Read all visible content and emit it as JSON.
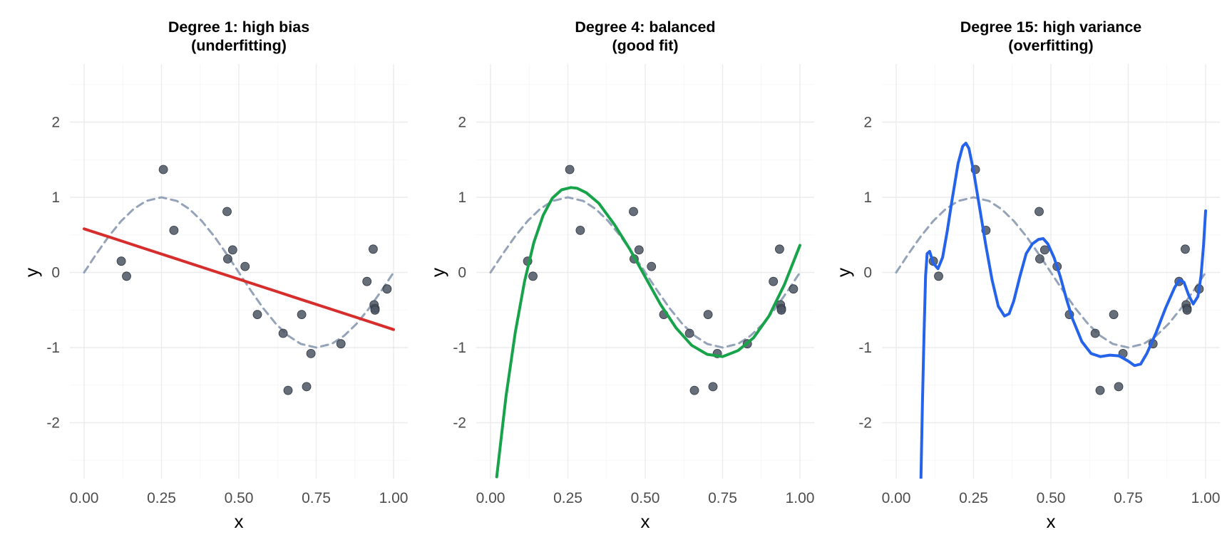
{
  "chart_data": [
    {
      "type": "scatter",
      "title": [
        "Degree 1: high bias",
        "(underfitting)"
      ],
      "xlabel": "x",
      "ylabel": "y",
      "xlim": [
        0,
        1
      ],
      "ylim": [
        -2.6,
        2.6
      ],
      "x_ticks": [
        "0.00",
        "0.25",
        "0.50",
        "0.75",
        "1.00"
      ],
      "y_ticks": [
        "2",
        "1",
        "0",
        "-1",
        "-2"
      ],
      "grid": true,
      "fit_color": "#d62d2d",
      "fit_curve": {
        "x": [
          0.0,
          0.1,
          0.2,
          0.3,
          0.4,
          0.5,
          0.6,
          0.7,
          0.8,
          0.9,
          1.0
        ],
        "y": [
          0.58,
          0.446,
          0.312,
          0.178,
          0.044,
          -0.09,
          -0.224,
          -0.358,
          -0.492,
          -0.626,
          -0.76
        ]
      }
    },
    {
      "type": "scatter",
      "title": [
        "Degree 4: balanced",
        "(good fit)"
      ],
      "xlabel": "x",
      "ylabel": "y",
      "xlim": [
        0,
        1
      ],
      "ylim": [
        -2.6,
        2.6
      ],
      "x_ticks": [
        "0.00",
        "0.25",
        "0.50",
        "0.75",
        "1.00"
      ],
      "y_ticks": [
        "2",
        "1",
        "0",
        "-1",
        "-2"
      ],
      "grid": true,
      "fit_color": "#16a34a",
      "fit_curve": {
        "x": [
          0.02,
          0.05,
          0.08,
          0.11,
          0.14,
          0.17,
          0.2,
          0.23,
          0.26,
          0.28,
          0.31,
          0.35,
          0.4,
          0.45,
          0.5,
          0.55,
          0.6,
          0.65,
          0.7,
          0.75,
          0.8,
          0.85,
          0.9,
          0.95,
          1.0
        ],
        "y": [
          -2.72,
          -1.65,
          -0.8,
          -0.12,
          0.4,
          0.76,
          0.99,
          1.1,
          1.13,
          1.12,
          1.06,
          0.92,
          0.64,
          0.31,
          -0.06,
          -0.43,
          -0.74,
          -0.97,
          -1.09,
          -1.12,
          -1.04,
          -0.87,
          -0.58,
          -0.16,
          0.36
        ]
      }
    },
    {
      "type": "scatter",
      "title": [
        "Degree 15: high variance",
        "(overfitting)"
      ],
      "xlabel": "x",
      "ylabel": "y",
      "xlim": [
        0,
        1
      ],
      "ylim": [
        -2.6,
        2.6
      ],
      "x_ticks": [
        "0.00",
        "0.25",
        "0.50",
        "0.75",
        "1.00"
      ],
      "y_ticks": [
        "2",
        "1",
        "0",
        "-1",
        "-2"
      ],
      "grid": true,
      "fit_color": "#2563eb",
      "fit_curve": {
        "x": [
          0.08,
          0.085,
          0.09,
          0.095,
          0.1,
          0.108,
          0.12,
          0.135,
          0.15,
          0.165,
          0.18,
          0.2,
          0.215,
          0.225,
          0.235,
          0.25,
          0.27,
          0.29,
          0.31,
          0.33,
          0.35,
          0.365,
          0.38,
          0.4,
          0.42,
          0.44,
          0.46,
          0.475,
          0.49,
          0.51,
          0.53,
          0.55,
          0.57,
          0.6,
          0.63,
          0.66,
          0.69,
          0.72,
          0.75,
          0.77,
          0.79,
          0.81,
          0.84,
          0.87,
          0.9,
          0.915,
          0.93,
          0.945,
          0.96,
          0.975,
          0.985,
          0.993,
          1.0
        ],
        "y": [
          -2.75,
          -1.7,
          -0.8,
          -0.05,
          0.25,
          0.28,
          0.12,
          0.05,
          0.2,
          0.55,
          0.95,
          1.45,
          1.68,
          1.72,
          1.65,
          1.35,
          0.85,
          0.35,
          -0.1,
          -0.45,
          -0.58,
          -0.55,
          -0.38,
          -0.05,
          0.25,
          0.38,
          0.44,
          0.45,
          0.38,
          0.2,
          -0.05,
          -0.35,
          -0.62,
          -0.92,
          -1.08,
          -1.12,
          -1.1,
          -1.11,
          -1.18,
          -1.24,
          -1.22,
          -1.08,
          -0.8,
          -0.48,
          -0.2,
          -0.1,
          -0.13,
          -0.3,
          -0.42,
          -0.32,
          -0.05,
          0.35,
          0.82
        ]
      }
    }
  ],
  "shared": {
    "truth_color": "#94a3b8",
    "point_color": "#4b5563",
    "points": {
      "x": [
        0.12,
        0.137,
        0.256,
        0.29,
        0.462,
        0.464,
        0.48,
        0.52,
        0.56,
        0.643,
        0.659,
        0.703,
        0.719,
        0.733,
        0.83,
        0.914,
        0.934,
        0.937,
        0.94,
        0.94,
        0.979
      ],
      "y": [
        0.15,
        -0.05,
        1.37,
        0.56,
        0.81,
        0.18,
        0.3,
        0.08,
        -0.56,
        -0.81,
        -1.57,
        -0.56,
        -1.52,
        -1.08,
        -0.95,
        -0.12,
        0.31,
        -0.43,
        -0.48,
        -0.5,
        -0.22
      ]
    },
    "truth_curve": {
      "x": [
        0.0,
        0.04,
        0.08,
        0.12,
        0.16,
        0.2,
        0.25,
        0.3,
        0.34,
        0.38,
        0.42,
        0.46,
        0.5,
        0.54,
        0.58,
        0.62,
        0.66,
        0.7,
        0.75,
        0.8,
        0.84,
        0.88,
        0.92,
        0.96,
        1.0
      ],
      "y": [
        0.0,
        0.249,
        0.482,
        0.685,
        0.844,
        0.951,
        1.0,
        0.951,
        0.844,
        0.685,
        0.482,
        0.249,
        0.0,
        -0.249,
        -0.482,
        -0.685,
        -0.844,
        -0.951,
        -1.0,
        -0.951,
        -0.844,
        -0.685,
        -0.482,
        -0.249,
        0.0
      ]
    }
  }
}
